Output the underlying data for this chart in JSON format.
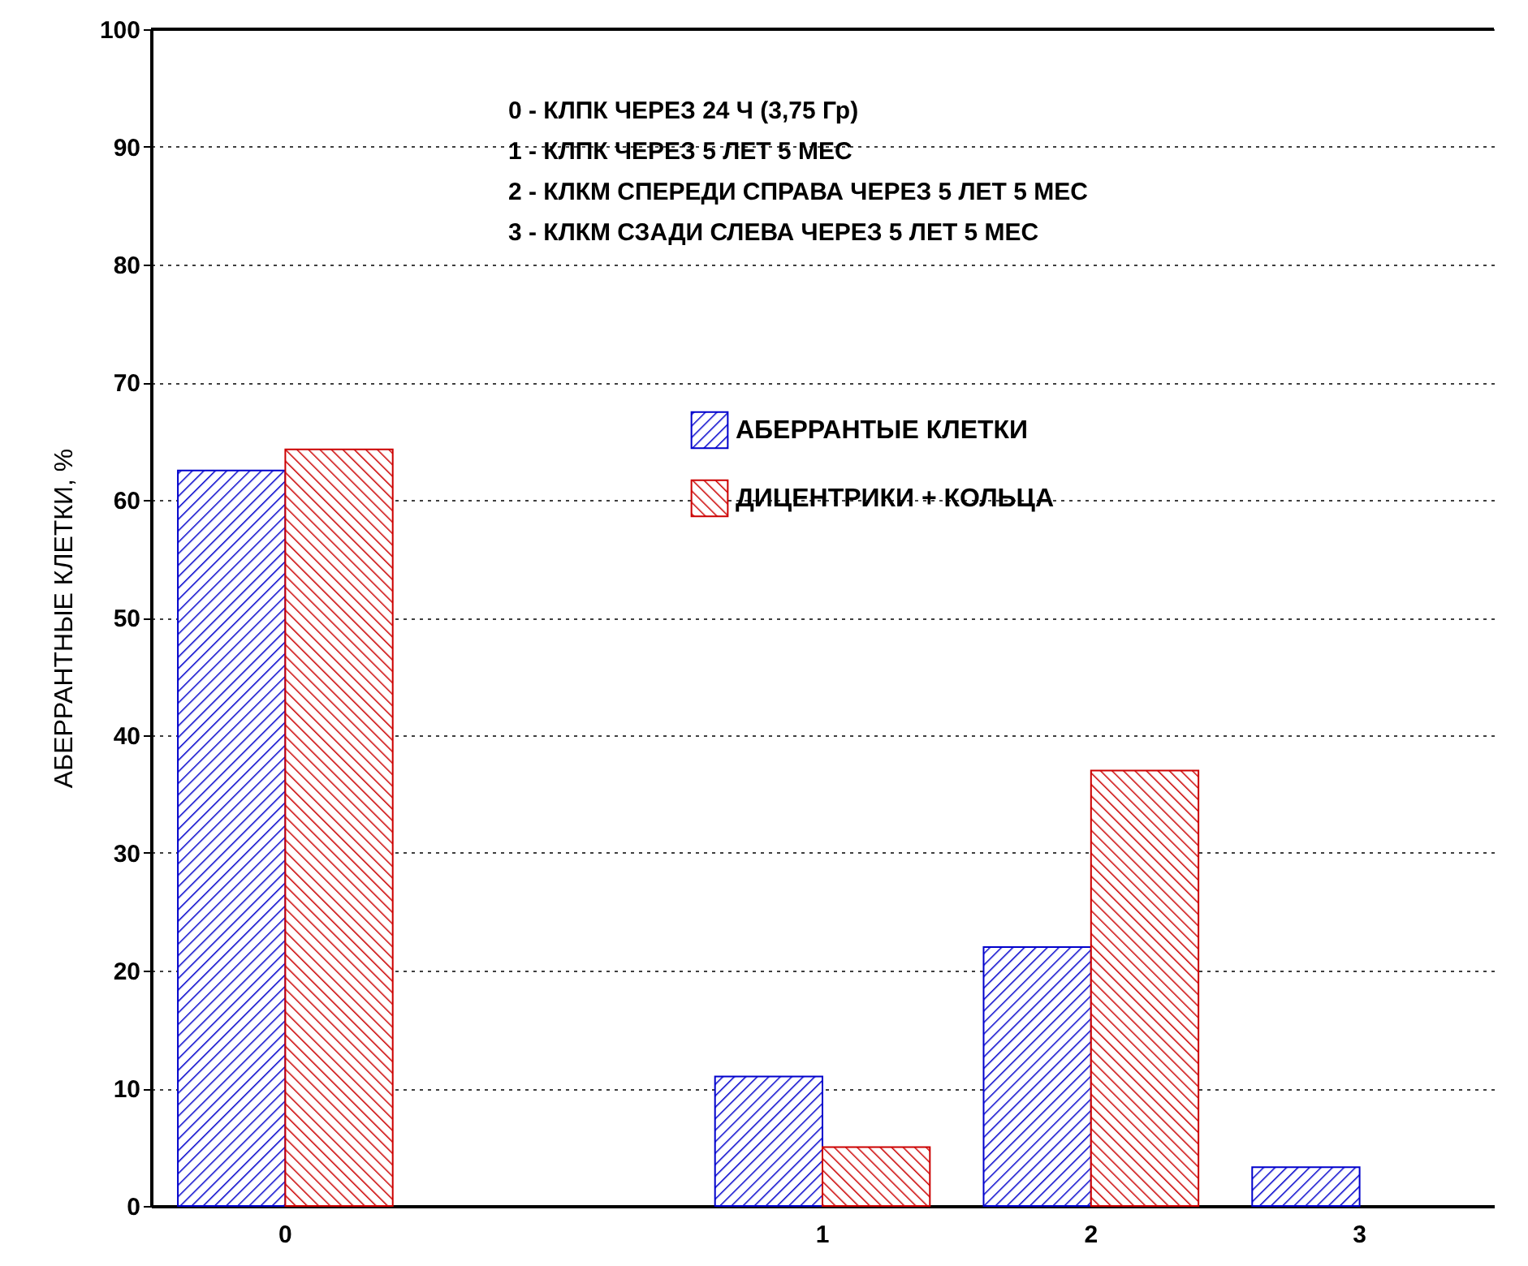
{
  "chart_data": {
    "type": "bar",
    "ylabel": "АБЕРРАНТНЫЕ КЛЕТКИ, %",
    "categories": [
      "0",
      null,
      "1",
      "2",
      "3"
    ],
    "series": [
      {
        "name": "АБЕРРАНТЫЕ КЛЕТКИ",
        "color": "#0000cc",
        "values": [
          62.5,
          null,
          11,
          22,
          3.3
        ]
      },
      {
        "name": "ДИЦЕНТРИКИ + КОЛЬЦА",
        "color": "#cc0000",
        "values": [
          64.3,
          null,
          5,
          37,
          null
        ]
      }
    ],
    "ylim": [
      0,
      100
    ],
    "yticks": [
      0,
      10,
      20,
      30,
      40,
      50,
      60,
      70,
      80,
      90,
      100
    ],
    "grid": "y",
    "legend": "top",
    "annotations": [
      "0 - КЛПК ЧЕРЕЗ 24 Ч (3,75 Гр)",
      "1 - КЛПК ЧЕРЕЗ 5 ЛЕТ 5 МЕС",
      "2 - КЛКМ СПЕРЕДИ СПРАВА ЧЕРЕЗ 5 ЛЕТ 5 МЕС",
      "3 - КЛКМ СЗАДИ СЛЕВА ЧЕРЕЗ 5 ЛЕТ 5 МЕС"
    ]
  }
}
